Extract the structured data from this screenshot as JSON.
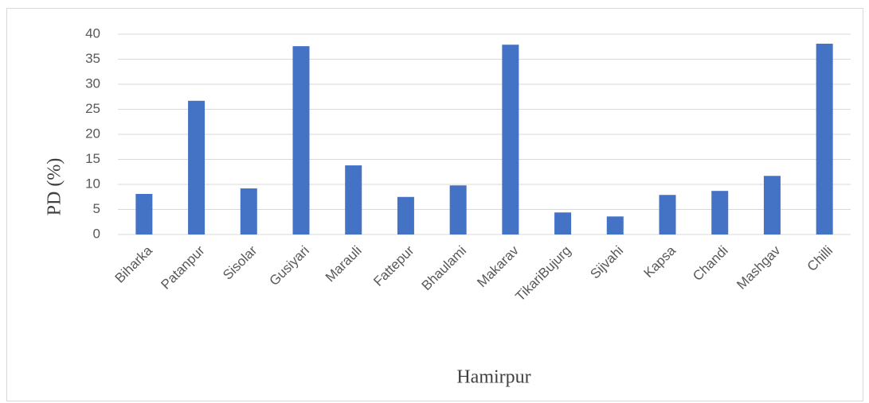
{
  "chart_data": {
    "type": "bar",
    "categories": [
      "Biharka",
      "Patanpur",
      "Sisolar",
      "Gusiyari",
      "Marauli",
      "Fattepur",
      "Bhaulami",
      "Makarav",
      "TikariBujurg",
      "Sijvahi",
      "Kapsa",
      "Chandi",
      "Mashgav",
      "Chilli"
    ],
    "values": [
      8.1,
      26.7,
      9.2,
      37.6,
      13.8,
      7.5,
      9.8,
      37.9,
      4.4,
      3.6,
      7.9,
      8.7,
      11.7,
      38.1
    ],
    "color": "#4472c4",
    "y_label": "PD (%)",
    "x_label": "Hamirpur",
    "ylim": [
      0,
      40
    ],
    "yticks": [
      0,
      5,
      10,
      15,
      20,
      25,
      30,
      35,
      40
    ],
    "grid": true
  }
}
